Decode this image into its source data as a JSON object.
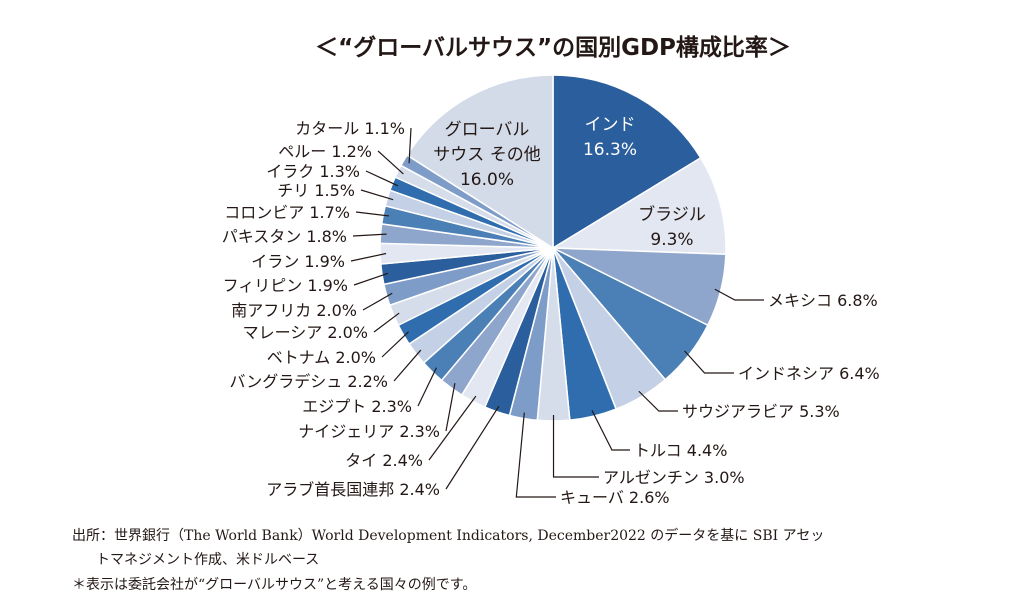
{
  "chart_data": {
    "type": "pie",
    "title": "＜“グローバルサウス”の国別GDP構成比率＞",
    "start": "12 o'clock, clockwise",
    "slices": [
      {
        "label": "インド",
        "value": 16.3,
        "text": "16.3%",
        "color": "#2a5e9c",
        "inside": true
      },
      {
        "label": "ブラジル",
        "value": 9.3,
        "text": "9.3%",
        "color": "#e2e7f1",
        "inside": true
      },
      {
        "label": "メキシコ",
        "value": 6.8,
        "text": "6.8%",
        "color": "#8ea5cc"
      },
      {
        "label": "インドネシア",
        "value": 6.4,
        "text": "6.4%",
        "color": "#4b80b6"
      },
      {
        "label": "サウジアラビア",
        "value": 5.3,
        "text": "5.3%",
        "color": "#c3d0e5"
      },
      {
        "label": "トルコ",
        "value": 4.4,
        "text": "4.4%",
        "color": "#2f6dae"
      },
      {
        "label": "アルゼンチン",
        "value": 3.0,
        "text": "3.0%",
        "color": "#d5ddeb"
      },
      {
        "label": "キューバ",
        "value": 2.6,
        "text": "2.6%",
        "color": "#7e9cc8"
      },
      {
        "label": "アラブ首長国連邦",
        "value": 2.4,
        "text": "2.4%",
        "color": "#2a5e9c"
      },
      {
        "label": "タイ",
        "value": 2.4,
        "text": "2.4%",
        "color": "#e2e7f1"
      },
      {
        "label": "ナイジェリア",
        "value": 2.3,
        "text": "2.3%",
        "color": "#8ea5cc"
      },
      {
        "label": "エジプト",
        "value": 2.3,
        "text": "2.3%",
        "color": "#4b80b6"
      },
      {
        "label": "バングラデシュ",
        "value": 2.2,
        "text": "2.2%",
        "color": "#c3d0e5"
      },
      {
        "label": "ベトナム",
        "value": 2.0,
        "text": "2.0%",
        "color": "#2f6dae"
      },
      {
        "label": "マレーシア",
        "value": 2.0,
        "text": "2.0%",
        "color": "#d5ddeb"
      },
      {
        "label": "南アフリカ",
        "value": 2.0,
        "text": "2.0%",
        "color": "#7e9cc8"
      },
      {
        "label": "フィリピン",
        "value": 1.9,
        "text": "1.9%",
        "color": "#2a5e9c"
      },
      {
        "label": "イラン",
        "value": 1.9,
        "text": "1.9%",
        "color": "#e2e7f1"
      },
      {
        "label": "パキスタン",
        "value": 1.8,
        "text": "1.8%",
        "color": "#8ea5cc"
      },
      {
        "label": "コロンビア",
        "value": 1.7,
        "text": "1.7%",
        "color": "#4b80b6"
      },
      {
        "label": "チリ",
        "value": 1.5,
        "text": "1.5%",
        "color": "#c3d0e5"
      },
      {
        "label": "イラク",
        "value": 1.3,
        "text": "1.3%",
        "color": "#2f6dae"
      },
      {
        "label": "ペルー",
        "value": 1.2,
        "text": "1.2%",
        "color": "#d5ddeb"
      },
      {
        "label": "カタール",
        "value": 1.1,
        "text": "1.1%",
        "color": "#7e9cc8"
      },
      {
        "label": "グローバルサウス その他",
        "value": 16.0,
        "text": "16.0%",
        "color": "#d3dbe9",
        "inside": true
      }
    ]
  },
  "notes": {
    "source_line1": "出所：世界銀行（The World Bank）World Development Indicators, December2022 のデータを基に SBI アセッ",
    "source_line2": "トマネジメント作成、米ドルベース",
    "disclaimer": "＊表示は委託会社が“グローバルサウス”と考える国々の例です。"
  }
}
